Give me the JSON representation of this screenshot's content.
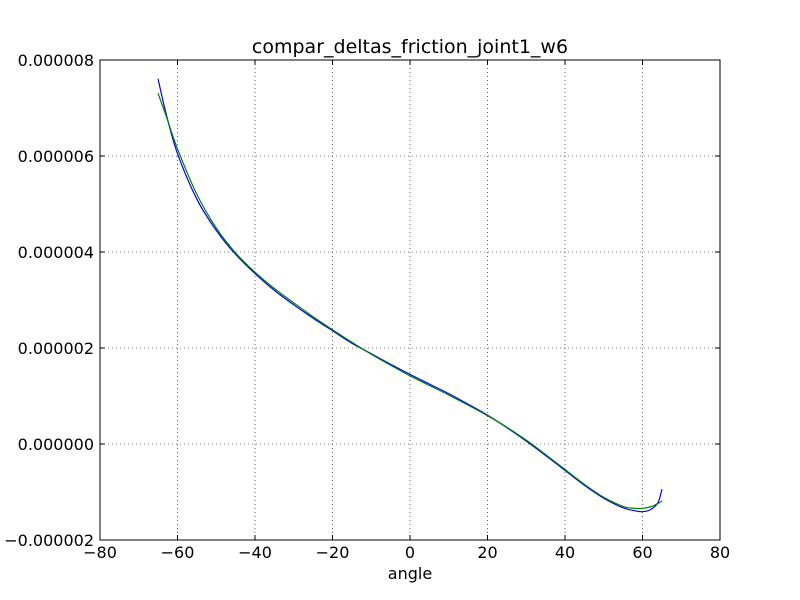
{
  "chart_data": {
    "type": "line",
    "title": "compar_deltas_friction_joint1_w6",
    "xlabel": "angle",
    "ylabel": "",
    "xlim": [
      -80,
      80
    ],
    "ylim": [
      -2e-06,
      8e-06
    ],
    "xticks": [
      -80,
      -60,
      -40,
      -20,
      0,
      20,
      40,
      60,
      80
    ],
    "xtick_labels": [
      "−80",
      "−60",
      "−40",
      "−20",
      "0",
      "20",
      "40",
      "60",
      "80"
    ],
    "yticks": [
      -2e-06,
      0,
      2e-06,
      4e-06,
      6e-06,
      8e-06
    ],
    "ytick_labels": [
      "−0.000002",
      "0.000000",
      "0.000002",
      "0.000004",
      "0.000006",
      "0.000008"
    ],
    "grid": true,
    "legend": "none",
    "series": [
      {
        "color": "#0000ff",
        "x": [
          -65,
          -63,
          -60,
          -55,
          -50,
          -45,
          -40,
          -35,
          -30,
          -25,
          -20,
          -15,
          -10,
          -5,
          0,
          5,
          10,
          15,
          20,
          25,
          30,
          35,
          40,
          45,
          50,
          55,
          58,
          60,
          62,
          64,
          65
        ],
        "y": [
          7.6e-06,
          6.9e-06,
          6.05e-06,
          5.1e-06,
          4.45e-06,
          3.95e-06,
          3.55e-06,
          3.2e-06,
          2.9e-06,
          2.62e-06,
          2.36e-06,
          2.1e-06,
          1.88e-06,
          1.66e-06,
          1.45e-06,
          1.25e-06,
          1.05e-06,
          8.3e-07,
          6e-07,
          3.4e-07,
          6e-08,
          -2.4e-07,
          -5.5e-07,
          -8.6e-07,
          -1.13e-06,
          -1.33e-06,
          -1.39e-06,
          -1.41e-06,
          -1.37e-06,
          -1.22e-06,
          -9.5e-07
        ]
      },
      {
        "color": "#008000",
        "x": [
          -65,
          -63,
          -60,
          -55,
          -50,
          -45,
          -40,
          -35,
          -30,
          -25,
          -20,
          -15,
          -10,
          -5,
          0,
          5,
          10,
          15,
          20,
          25,
          30,
          35,
          40,
          45,
          50,
          55,
          58,
          60,
          62,
          64,
          65
        ],
        "y": [
          7.3e-06,
          6.85e-06,
          6.15e-06,
          5.2e-06,
          4.5e-06,
          3.98e-06,
          3.58e-06,
          3.24e-06,
          2.94e-06,
          2.65e-06,
          2.38e-06,
          2.12e-06,
          1.87e-06,
          1.64e-06,
          1.42e-06,
          1.22e-06,
          1.02e-06,
          8.1e-07,
          5.9e-07,
          3.5e-07,
          8e-08,
          -2.2e-07,
          -5.3e-07,
          -8.4e-07,
          -1.11e-06,
          -1.3e-06,
          -1.34e-06,
          -1.34e-06,
          -1.31e-06,
          -1.24e-06,
          -1.19e-06
        ]
      }
    ]
  }
}
